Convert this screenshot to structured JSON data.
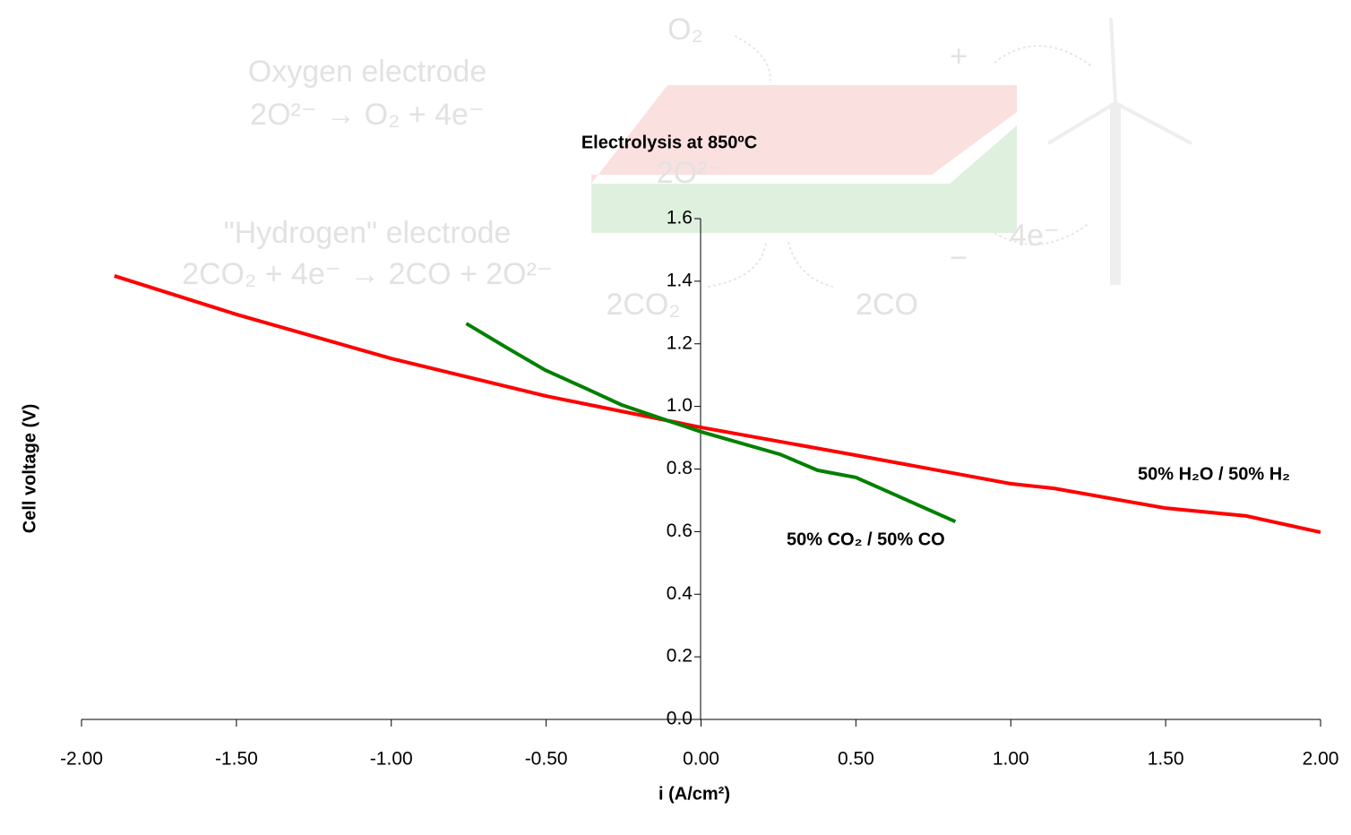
{
  "chart_data": {
    "type": "line",
    "title": "Electrolysis at 850ºC",
    "x_label": "i (A/cm²)",
    "y_label": "Cell voltage (V)",
    "xlim": [
      -2,
      2
    ],
    "ylim": [
      0,
      1.6
    ],
    "xticks": [
      {
        "value": -2,
        "label": "-2.00"
      },
      {
        "value": -1.5,
        "label": "-1.50"
      },
      {
        "value": -1,
        "label": "-1.00"
      },
      {
        "value": -0.5,
        "label": "-0.50"
      },
      {
        "value": 0,
        "label": "0.00"
      },
      {
        "value": 0.5,
        "label": "0.50"
      },
      {
        "value": 1,
        "label": "1.00"
      },
      {
        "value": 1.5,
        "label": "1.50"
      },
      {
        "value": 2,
        "label": "2.00"
      }
    ],
    "yticks": [
      {
        "value": 0,
        "label": "0.0"
      },
      0.2,
      0.4,
      0.6,
      0.8,
      {
        "value": 1,
        "label": "1.0"
      },
      1.2,
      1.4,
      1.6
    ],
    "series": [
      {
        "name": "50% H₂O / 50% H₂",
        "color": "#ff0000",
        "x": [
          -1.894,
          -1.5,
          -1.0,
          -0.5,
          0,
          0.5,
          1.0,
          1.14,
          1.5,
          1.76,
          2.0
        ],
        "values": [
          1.417,
          1.294,
          1.153,
          1.033,
          0.933,
          0.844,
          0.753,
          0.738,
          0.675,
          0.65,
          0.598
        ]
      },
      {
        "name": "50% CO₂ / 50% CO",
        "color": "#008000",
        "x": [
          -0.758,
          -0.628,
          -0.503,
          -0.382,
          -0.257,
          -0.121,
          0,
          0.255,
          0.376,
          0.5,
          0.63,
          0.821
        ],
        "values": [
          1.265,
          1.188,
          1.116,
          1.062,
          1.005,
          0.959,
          0.919,
          0.847,
          0.796,
          0.773,
          0.716,
          0.632
        ]
      }
    ],
    "annotations": [
      "O₂",
      "Oxygen electrode",
      "2O²⁻ → O₂ + 4e⁻",
      "\"Hydrogen\" electrode",
      "2CO₂ + 4e⁻ → 2CO + 2O²⁻",
      "2O²⁻",
      "4e⁻",
      "2CO₂",
      "2CO",
      "+",
      "−"
    ]
  }
}
